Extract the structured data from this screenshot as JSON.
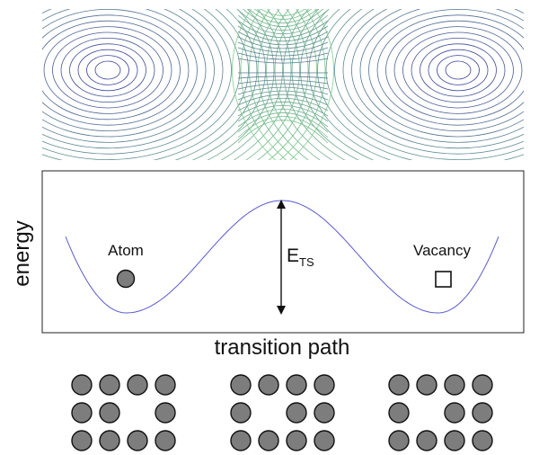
{
  "energy_panel": {
    "ylabel": "energy",
    "xlabel": "transition path",
    "barrier_label": "E",
    "barrier_subscript": "TS",
    "left_state_label": "Atom",
    "right_state_label": "Vacancy",
    "curve_color": "#5a5acf"
  },
  "contour_panel": {
    "colors_inner": "#3a3f9a",
    "colors_outer": "#7fcf8a"
  },
  "lattice": {
    "atom_color": "#7d7d7d",
    "configs": [
      {
        "vacancy": [
          1,
          2
        ]
      },
      {
        "vacancy": [
          1,
          1
        ]
      },
      {
        "vacancy": [
          1,
          1
        ]
      }
    ]
  }
}
